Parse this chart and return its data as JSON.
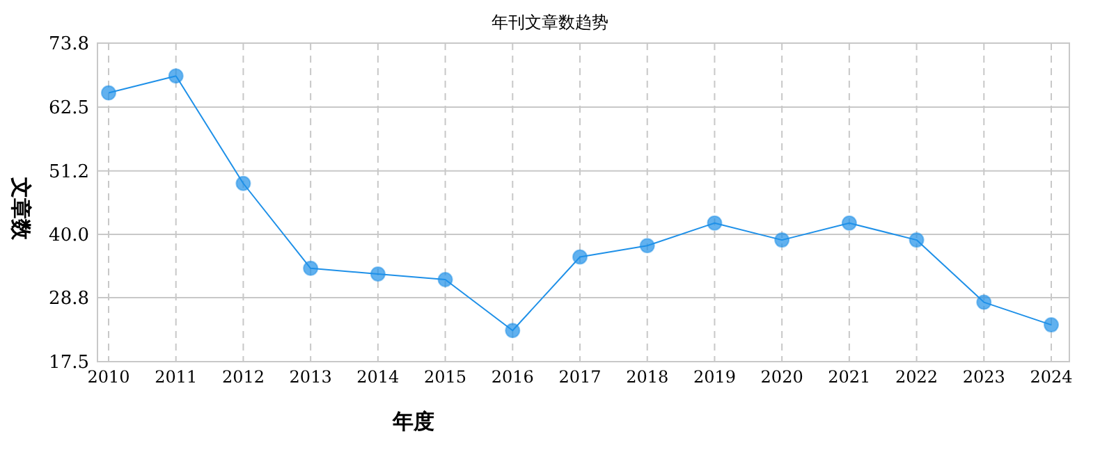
{
  "chart_data": {
    "type": "line",
    "title": "年刊文章数趋势",
    "xlabel": "年度",
    "ylabel": "文章数",
    "categories": [
      "2010",
      "2011",
      "2012",
      "2013",
      "2014",
      "2015",
      "2016",
      "2017",
      "2018",
      "2019",
      "2020",
      "2021",
      "2022",
      "2023",
      "2024"
    ],
    "series": [
      {
        "color": "#1e90e8",
        "values": [
          65,
          68,
          49,
          34,
          33,
          32,
          23,
          36,
          38,
          42,
          39,
          42,
          39,
          28,
          24
        ]
      }
    ],
    "ylim": [
      17.5,
      73.8
    ],
    "yticks": [
      17.5,
      28.8,
      {
        "value": 40,
        "label": "40.0"
      },
      51.2,
      62.5,
      73.8
    ],
    "grid": true,
    "marker": "circle",
    "line_style": "solid"
  }
}
